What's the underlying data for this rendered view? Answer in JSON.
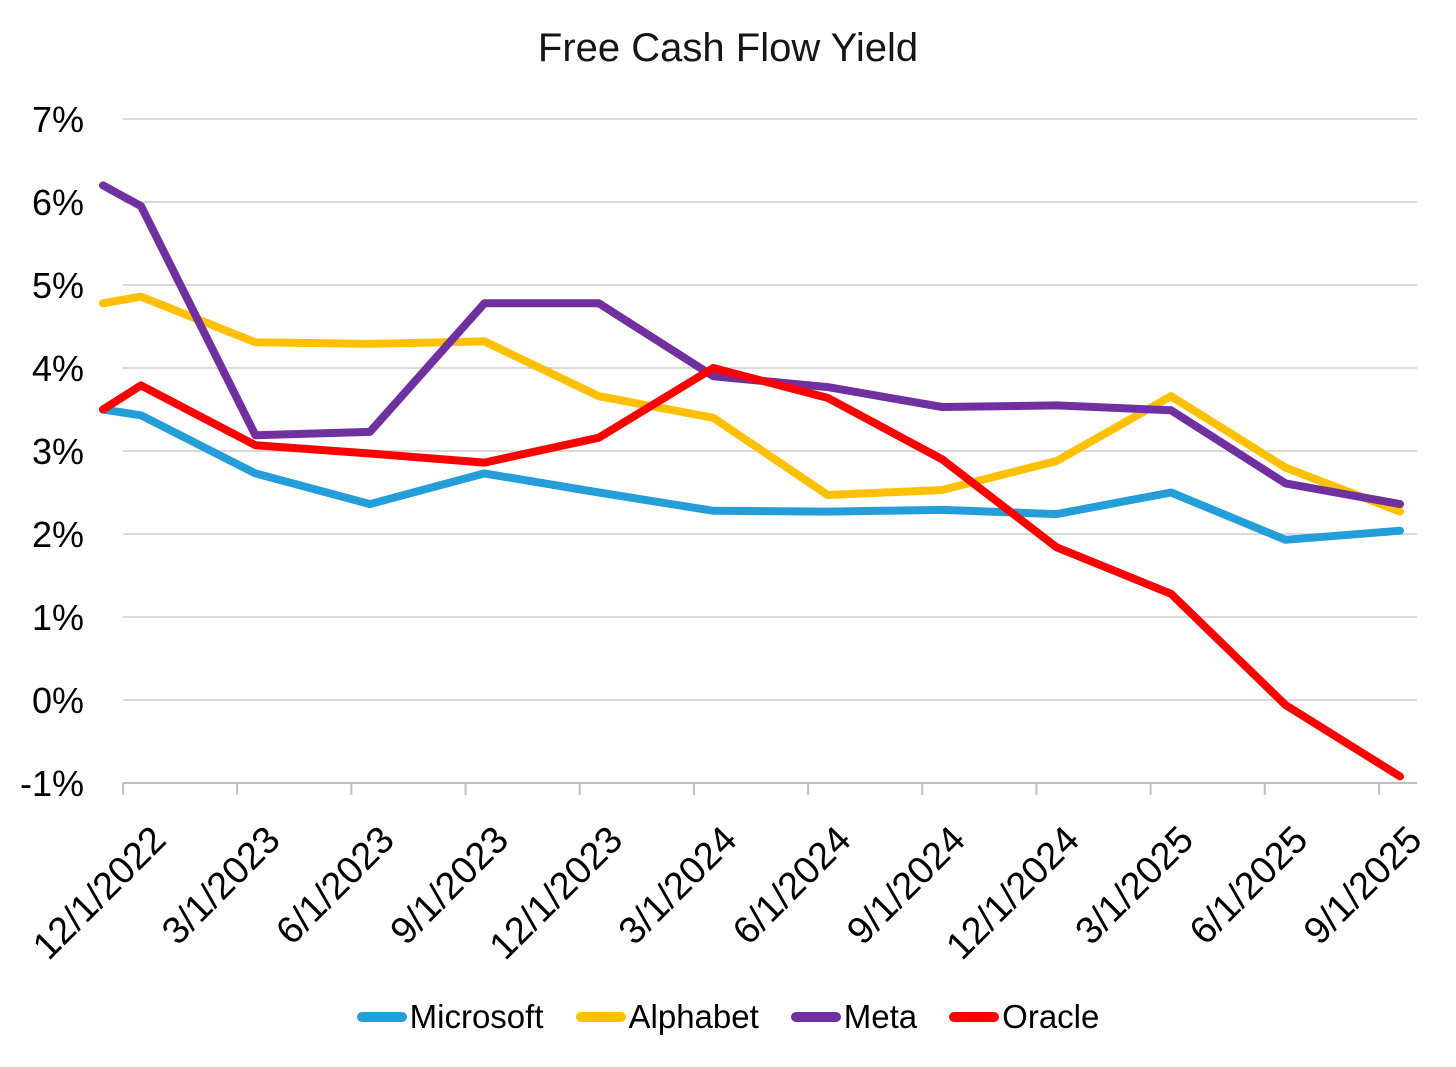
{
  "chart_data": {
    "type": "line",
    "title": "Free Cash Flow Yield",
    "unit": "%",
    "categories": [
      "12/1/2022",
      "3/1/2023",
      "6/1/2023",
      "9/1/2023",
      "12/1/2023",
      "3/1/2024",
      "6/1/2024",
      "9/1/2024",
      "12/1/2024",
      "3/1/2025",
      "6/1/2025",
      "9/1/2025"
    ],
    "series": [
      {
        "name": "Microsoft",
        "color": "#249ED9",
        "lead_in_value": 3.5,
        "values": [
          3.43,
          2.73,
          2.36,
          2.73,
          2.5,
          2.28,
          2.27,
          2.29,
          2.24,
          2.5,
          1.93,
          2.04
        ]
      },
      {
        "name": "Alphabet",
        "color": "#FFC000",
        "lead_in_value": 4.78,
        "values": [
          4.86,
          4.31,
          4.29,
          4.32,
          3.66,
          3.4,
          2.47,
          2.53,
          2.88,
          3.66,
          2.8,
          2.27
        ]
      },
      {
        "name": "Meta",
        "color": "#7030A0",
        "lead_in_value": 6.2,
        "values": [
          5.95,
          3.19,
          3.23,
          4.78,
          4.78,
          3.9,
          3.77,
          3.53,
          3.55,
          3.49,
          2.61,
          2.36
        ]
      },
      {
        "name": "Oracle",
        "color": "#FF0000",
        "lead_in_value": 3.5,
        "values": [
          3.79,
          3.07,
          2.97,
          2.86,
          3.16,
          4.0,
          3.64,
          2.9,
          1.84,
          1.28,
          -0.06,
          -0.92
        ]
      }
    ],
    "ylim": [
      -1,
      7
    ],
    "ytick_labels": [
      "7%",
      "6%",
      "5%",
      "4%",
      "3%",
      "2%",
      "1%",
      "0%",
      "-1%"
    ],
    "ytick_values": [
      7,
      6,
      5,
      4,
      3,
      2,
      1,
      0,
      -1
    ],
    "grid": true,
    "legend_position": "bottom",
    "x_label_rotation_deg": -45,
    "lead_in_note": "each line enters from the left margin slightly before the first category",
    "colors": {
      "gridline": "#D9D9D9",
      "axis": "#BFBFBF",
      "text": "#000000",
      "title_text": "#151515"
    }
  }
}
